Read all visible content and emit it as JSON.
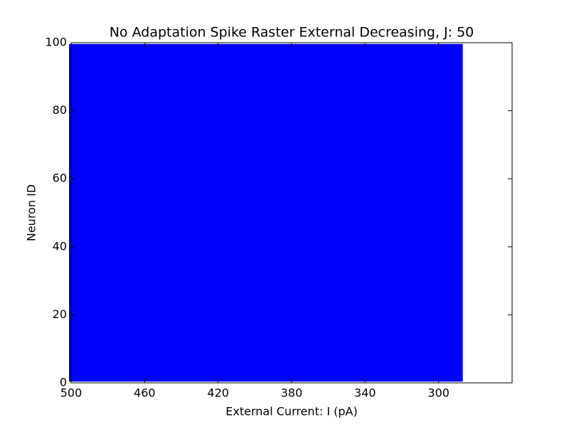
{
  "chart_data": {
    "type": "raster",
    "title": "No Adaptation Spike Raster External Decreasing, J: 50",
    "xlabel": "External Current: I (pA)",
    "ylabel": "Neuron ID",
    "x_range": [
      500,
      288
    ],
    "neuron_range": [
      1,
      99
    ],
    "color": "#0000ff",
    "xlim": [
      500,
      260
    ],
    "xticks": [
      500,
      460,
      420,
      380,
      340,
      300
    ],
    "ylim": [
      0,
      100
    ],
    "yticks": [
      0,
      20,
      40,
      60,
      80,
      100
    ]
  }
}
